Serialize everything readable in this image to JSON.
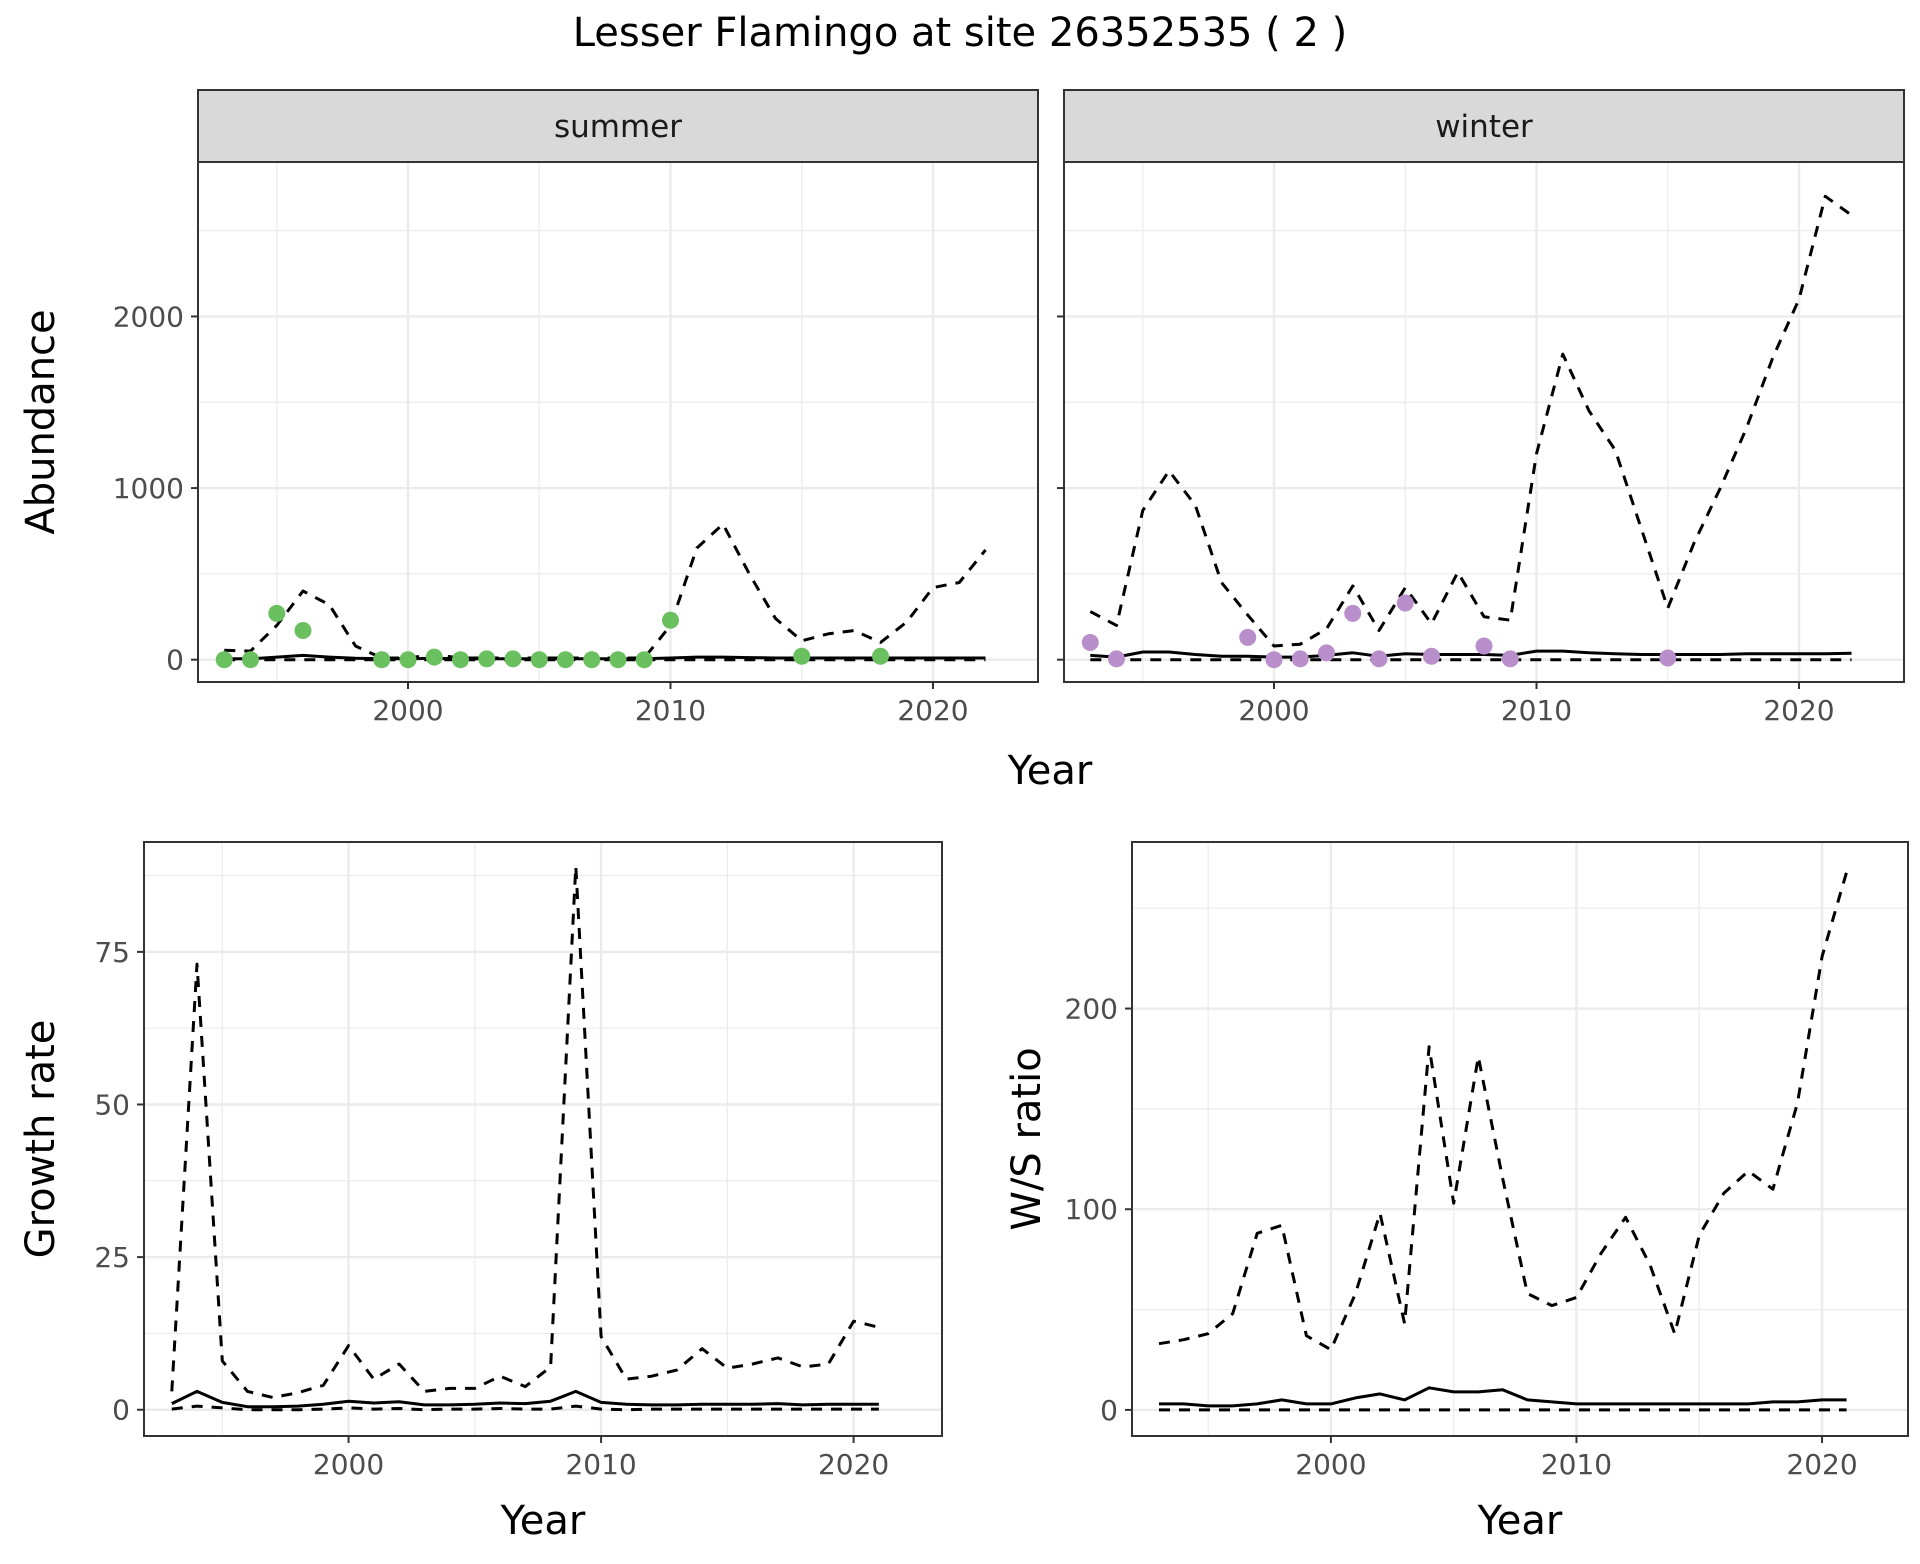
{
  "title": "Lesser Flamingo at site 26352535 ( 2 )",
  "colors": {
    "summer_points": "#6abf5e",
    "winter_points": "#b88fca",
    "line": "#000000",
    "strip_fill": "#d9d9d9",
    "grid": "#ebebeb"
  },
  "chart_data": [
    {
      "id": "abundance",
      "type": "line",
      "title": "Lesser Flamingo at site 26352535 ( 2 )",
      "xlabel": "Year",
      "ylabel": "Abundance",
      "xlim": [
        1992,
        2024
      ],
      "ylim": [
        -130,
        2900
      ],
      "x_ticks": [
        2000,
        2010,
        2020
      ],
      "y_ticks": [
        0,
        1000,
        2000
      ],
      "grid": true,
      "legend": "none",
      "facets": [
        {
          "strip": "summer",
          "point_color": "#6abf5e",
          "points": {
            "x": [
              1993,
              1994,
              1995,
              1996,
              1999,
              2000,
              2001,
              2002,
              2003,
              2004,
              2005,
              2006,
              2007,
              2008,
              2009,
              2010,
              2015,
              2018
            ],
            "y": [
              0,
              0,
              270,
              170,
              0,
              0,
              15,
              0,
              5,
              5,
              0,
              0,
              0,
              0,
              0,
              230,
              20,
              20
            ]
          },
          "series": [
            {
              "style": "solid",
              "x": [
                1993,
                1994,
                1995,
                1996,
                1997,
                1998,
                1999,
                2000,
                2001,
                2002,
                2003,
                2004,
                2005,
                2006,
                2007,
                2008,
                2009,
                2010,
                2011,
                2012,
                2013,
                2014,
                2015,
                2016,
                2017,
                2018,
                2019,
                2020,
                2021,
                2022
              ],
              "y": [
                5,
                5,
                15,
                25,
                15,
                8,
                5,
                5,
                8,
                5,
                5,
                5,
                5,
                5,
                5,
                5,
                5,
                10,
                15,
                15,
                12,
                10,
                10,
                10,
                10,
                10,
                10,
                10,
                10,
                10
              ]
            },
            {
              "style": "dashed",
              "x": [
                1993,
                1994,
                1995,
                1996,
                1997,
                1998,
                1999,
                2000,
                2001,
                2002,
                2003,
                2004,
                2005,
                2006,
                2007,
                2008,
                2009,
                2010,
                2011,
                2012,
                2013,
                2014,
                2015,
                2016,
                2017,
                2018,
                2019,
                2020,
                2021,
                2022
              ],
              "y": [
                55,
                50,
                200,
                400,
                320,
                80,
                10,
                10,
                30,
                10,
                10,
                10,
                10,
                10,
                10,
                10,
                10,
                200,
                650,
                790,
                500,
                240,
                110,
                150,
                170,
                100,
                220,
                420,
                450,
                640
              ]
            },
            {
              "style": "dashed",
              "x": [
                1993,
                2022
              ],
              "y": [
                0,
                0
              ]
            }
          ]
        },
        {
          "strip": "winter",
          "point_color": "#b88fca",
          "points": {
            "x": [
              1993,
              1994,
              1999,
              2000,
              2001,
              2002,
              2003,
              2004,
              2005,
              2006,
              2008,
              2009,
              2015
            ],
            "y": [
              100,
              5,
              130,
              0,
              5,
              40,
              270,
              5,
              330,
              20,
              80,
              5,
              10
            ]
          },
          "series": [
            {
              "style": "solid",
              "x": [
                1993,
                1994,
                1995,
                1996,
                1997,
                1998,
                1999,
                2000,
                2001,
                2002,
                2003,
                2004,
                2005,
                2006,
                2007,
                2008,
                2009,
                2010,
                2011,
                2012,
                2013,
                2014,
                2015,
                2016,
                2017,
                2018,
                2019,
                2020,
                2021,
                2022
              ],
              "y": [
                25,
                15,
                45,
                45,
                30,
                20,
                20,
                15,
                15,
                25,
                40,
                20,
                35,
                30,
                30,
                30,
                25,
                50,
                50,
                40,
                35,
                30,
                30,
                30,
                30,
                35,
                35,
                35,
                35,
                38
              ]
            },
            {
              "style": "dashed",
              "x": [
                1993,
                1994,
                1995,
                1996,
                1997,
                1998,
                1999,
                2000,
                2001,
                2002,
                2003,
                2004,
                2005,
                2006,
                2007,
                2008,
                2009,
                2010,
                2011,
                2012,
                2013,
                2014,
                2015,
                2016,
                2017,
                2018,
                2019,
                2020,
                2021,
                2022
              ],
              "y": [
                280,
                200,
                870,
                1100,
                900,
                450,
                260,
                80,
                90,
                180,
                430,
                170,
                420,
                210,
                510,
                250,
                230,
                1200,
                1780,
                1450,
                1220,
                760,
                300,
                680,
                1000,
                1350,
                1760,
                2100,
                2700,
                2590
              ]
            },
            {
              "style": "dashed",
              "x": [
                1993,
                2022
              ],
              "y": [
                0,
                0
              ]
            }
          ]
        }
      ]
    },
    {
      "id": "growth",
      "type": "line",
      "xlabel": "Year",
      "ylabel": "Growth rate",
      "xlim": [
        1991.9,
        2023.5
      ],
      "ylim": [
        -4.3,
        93
      ],
      "x_ticks": [
        2000,
        2010,
        2020
      ],
      "y_ticks": [
        0,
        25,
        50,
        75
      ],
      "grid": true,
      "series": [
        {
          "style": "solid",
          "x": [
            1993,
            1994,
            1995,
            1996,
            1997,
            1998,
            1999,
            2000,
            2001,
            2002,
            2003,
            2004,
            2005,
            2006,
            2007,
            2008,
            2009,
            2010,
            2011,
            2012,
            2013,
            2014,
            2015,
            2016,
            2017,
            2018,
            2019,
            2020,
            2021
          ],
          "y": [
            1,
            3,
            1.2,
            0.5,
            0.5,
            0.6,
            0.9,
            1.4,
            1.1,
            1.3,
            0.8,
            0.8,
            0.9,
            1.1,
            1,
            1.4,
            3,
            1.2,
            0.9,
            0.8,
            0.8,
            0.9,
            0.9,
            0.9,
            1,
            0.8,
            0.9,
            0.9,
            0.9
          ]
        },
        {
          "style": "dashed",
          "x": [
            1993,
            1994,
            1995,
            1996,
            1997,
            1998,
            1999,
            2000,
            2001,
            2002,
            2003,
            2004,
            2005,
            2006,
            2007,
            2008,
            2009,
            2010,
            2011,
            2012,
            2013,
            2014,
            2015,
            2016,
            2017,
            2018,
            2019,
            2020,
            2021
          ],
          "y": [
            3,
            73,
            8,
            3,
            2,
            2.8,
            4,
            10.5,
            5,
            7.5,
            3,
            3.5,
            3.5,
            5.5,
            3.8,
            7,
            89,
            12,
            5,
            5.5,
            6.5,
            10,
            6.8,
            7.5,
            8.5,
            7,
            7.5,
            14.5,
            13.5
          ]
        },
        {
          "style": "dashed",
          "x": [
            1993,
            1994,
            1995,
            1996,
            1997,
            1998,
            1999,
            2000,
            2001,
            2002,
            2003,
            2004,
            2005,
            2006,
            2007,
            2008,
            2009,
            2010,
            2011,
            2012,
            2013,
            2014,
            2015,
            2016,
            2017,
            2018,
            2019,
            2020,
            2021
          ],
          "y": [
            0.1,
            0.6,
            0.3,
            0,
            0,
            0,
            0.1,
            0.3,
            0.1,
            0.2,
            0,
            0.1,
            0.1,
            0.2,
            0.1,
            0.1,
            0.6,
            0.1,
            0,
            0.1,
            0.1,
            0.1,
            0.1,
            0.1,
            0.1,
            0.1,
            0.1,
            0.1,
            0.1
          ]
        }
      ]
    },
    {
      "id": "ratio",
      "type": "line",
      "xlabel": "Year",
      "ylabel": "W/S ratio",
      "xlim": [
        1991.9,
        2023.5
      ],
      "ylim": [
        -13,
        283
      ],
      "x_ticks": [
        2000,
        2010,
        2020
      ],
      "y_ticks": [
        0,
        100,
        200
      ],
      "grid": true,
      "series": [
        {
          "style": "solid",
          "x": [
            1993,
            1994,
            1995,
            1996,
            1997,
            1998,
            1999,
            2000,
            2001,
            2002,
            2003,
            2004,
            2005,
            2006,
            2007,
            2008,
            2009,
            2010,
            2011,
            2012,
            2013,
            2014,
            2015,
            2016,
            2017,
            2018,
            2019,
            2020,
            2021
          ],
          "y": [
            3,
            3,
            2,
            2,
            3,
            5,
            3,
            3,
            6,
            8,
            5,
            11,
            9,
            9,
            10,
            5,
            4,
            3,
            3,
            3,
            3,
            3,
            3,
            3,
            3,
            4,
            4,
            5,
            5
          ]
        },
        {
          "style": "dashed",
          "x": [
            1993,
            1994,
            1995,
            1996,
            1997,
            1998,
            1999,
            2000,
            2001,
            2002,
            2003,
            2004,
            2005,
            2006,
            2007,
            2008,
            2009,
            2010,
            2011,
            2012,
            2013,
            2014,
            2015,
            2016,
            2017,
            2018,
            2019,
            2020,
            2021
          ],
          "y": [
            33,
            35,
            38,
            48,
            88,
            92,
            37,
            30,
            58,
            98,
            43,
            181,
            103,
            176,
            115,
            58,
            52,
            56,
            78,
            96,
            72,
            38,
            87,
            108,
            119,
            110,
            153,
            226,
            268
          ]
        },
        {
          "style": "dashed",
          "x": [
            1993,
            2021
          ],
          "y": [
            0,
            0
          ]
        }
      ]
    }
  ]
}
